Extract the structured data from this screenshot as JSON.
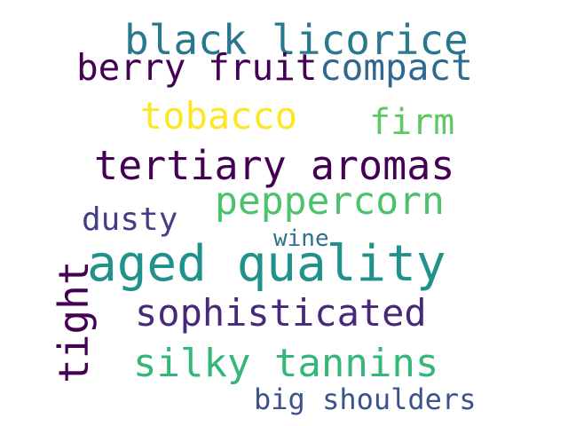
{
  "words": [
    {
      "id": "black-licorice",
      "text": "black licorice",
      "color": "#2a788e"
    },
    {
      "id": "berry-fruit",
      "text": "berry fruit",
      "color": "#440154"
    },
    {
      "id": "compact",
      "text": "compact",
      "color": "#31688e"
    },
    {
      "id": "tobacco",
      "text": "tobacco",
      "color": "#fde725"
    },
    {
      "id": "firm",
      "text": "firm",
      "color": "#5ec962"
    },
    {
      "id": "tertiary-aromas",
      "text": "tertiary aromas",
      "color": "#440154"
    },
    {
      "id": "peppercorn",
      "text": "peppercorn",
      "color": "#4cc26c"
    },
    {
      "id": "dusty",
      "text": "dusty",
      "color": "#433e85"
    },
    {
      "id": "wine",
      "text": "wine",
      "color": "#2c728e"
    },
    {
      "id": "aged-quality",
      "text": "aged quality",
      "color": "#21918c"
    },
    {
      "id": "sophisticated",
      "text": "sophisticated",
      "color": "#482878"
    },
    {
      "id": "silky-tannins",
      "text": "silky tannins",
      "color": "#35b779"
    },
    {
      "id": "big-shoulders",
      "text": "big shoulders",
      "color": "#3b528b"
    },
    {
      "id": "tight",
      "text": "tight",
      "color": "#440154"
    }
  ]
}
